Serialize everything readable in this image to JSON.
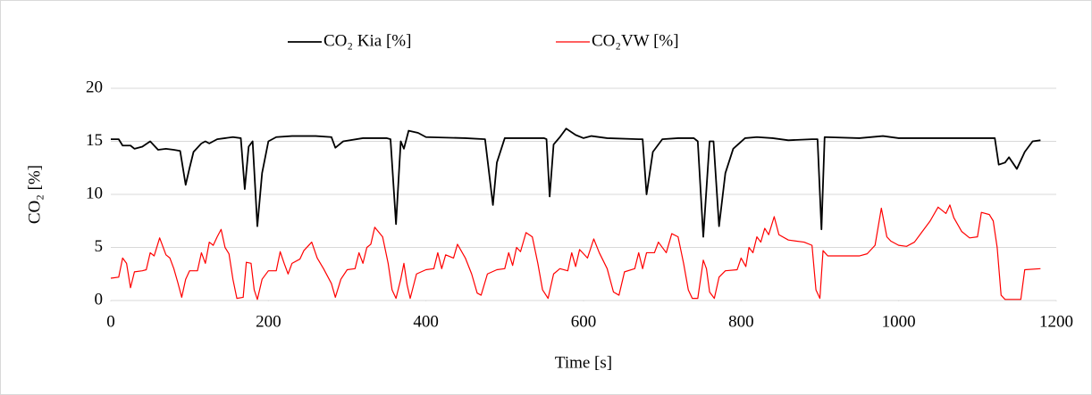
{
  "chart_data": {
    "type": "line",
    "xlabel": "Time [s]",
    "ylabel": "CO₂ [%]",
    "xlim": [
      0,
      1200
    ],
    "xticks": [
      0,
      200,
      400,
      600,
      800,
      1000,
      1200
    ],
    "ylim": [
      0,
      20
    ],
    "yticks": [
      0,
      5,
      10,
      15,
      20
    ],
    "grid": true,
    "legend": "top",
    "series": [
      {
        "name": "CO₂  Kia [%]",
        "color": "#000000",
        "x": [
          0,
          10,
          15,
          25,
          30,
          40,
          50,
          60,
          70,
          80,
          88,
          95,
          100,
          105,
          115,
          120,
          125,
          135,
          145,
          155,
          165,
          170,
          175,
          180,
          186,
          192,
          200,
          210,
          230,
          260,
          280,
          285,
          295,
          320,
          350,
          355,
          362,
          368,
          372,
          378,
          390,
          400,
          450,
          475,
          485,
          490,
          500,
          550,
          553,
          557,
          562,
          570,
          578,
          590,
          600,
          610,
          630,
          670,
          675,
          680,
          688,
          700,
          720,
          740,
          745,
          752,
          760,
          765,
          772,
          780,
          790,
          805,
          820,
          840,
          860,
          890,
          897,
          902,
          906,
          950,
          980,
          1000,
          1050,
          1100,
          1122,
          1127,
          1135,
          1140,
          1150,
          1160,
          1170,
          1180
        ],
        "values": [
          15.2,
          15.2,
          14.6,
          14.6,
          14.3,
          14.5,
          15.0,
          14.2,
          14.3,
          14.2,
          14.1,
          10.9,
          12.5,
          14.0,
          14.8,
          15.0,
          14.8,
          15.2,
          15.3,
          15.4,
          15.3,
          10.5,
          14.5,
          15.0,
          7.0,
          12,
          15.0,
          15.4,
          15.5,
          15.5,
          15.4,
          14.4,
          15.0,
          15.3,
          15.3,
          15.2,
          7.2,
          15.0,
          14.3,
          16.0,
          15.8,
          15.4,
          15.3,
          15.2,
          9.0,
          13,
          15.3,
          15.3,
          15.2,
          9.8,
          14.7,
          15.4,
          16.2,
          15.6,
          15.3,
          15.5,
          15.3,
          15.2,
          15.2,
          10.0,
          14,
          15.2,
          15.3,
          15.3,
          15.0,
          6.0,
          15.0,
          15.0,
          7.0,
          12,
          14.3,
          15.3,
          15.4,
          15.3,
          15.1,
          15.2,
          15.2,
          6.7,
          15.4,
          15.3,
          15.5,
          15.3,
          15.3,
          15.3,
          15.3,
          12.8,
          13.0,
          13.5,
          12.4,
          14.0,
          15.0,
          15.1
        ]
      },
      {
        "name": "CO₂VW [%]",
        "color": "#ff0000",
        "x": [
          0,
          10,
          15,
          20,
          25,
          30,
          40,
          45,
          50,
          55,
          62,
          70,
          75,
          80,
          85,
          90,
          95,
          100,
          110,
          115,
          120,
          125,
          130,
          135,
          140,
          145,
          150,
          155,
          160,
          168,
          172,
          178,
          182,
          186,
          192,
          200,
          210,
          215,
          220,
          225,
          230,
          240,
          245,
          255,
          262,
          270,
          280,
          285,
          292,
          300,
          310,
          315,
          320,
          325,
          330,
          335,
          345,
          352,
          357,
          362,
          368,
          372,
          376,
          380,
          388,
          400,
          410,
          415,
          420,
          425,
          435,
          440,
          450,
          458,
          465,
          470,
          478,
          490,
          500,
          505,
          510,
          515,
          520,
          527,
          535,
          542,
          548,
          555,
          562,
          570,
          580,
          585,
          590,
          595,
          605,
          613,
          620,
          630,
          638,
          645,
          652,
          665,
          670,
          675,
          680,
          690,
          695,
          705,
          712,
          720,
          727,
          733,
          738,
          745,
          752,
          756,
          760,
          766,
          772,
          780,
          795,
          800,
          806,
          810,
          815,
          820,
          825,
          830,
          835,
          842,
          848,
          860,
          880,
          890,
          895,
          900,
          904,
          910,
          950,
          960,
          970,
          978,
          985,
          990,
          1000,
          1010,
          1020,
          1030,
          1040,
          1050,
          1060,
          1065,
          1070,
          1080,
          1090,
          1100,
          1105,
          1115,
          1120,
          1125,
          1130,
          1135,
          1155,
          1160,
          1180
        ],
        "values": [
          2.1,
          2.2,
          4.0,
          3.5,
          1.2,
          2.7,
          2.8,
          2.9,
          4.5,
          4.2,
          5.9,
          4.3,
          4.0,
          3.0,
          1.7,
          0.3,
          2.0,
          2.8,
          2.8,
          4.5,
          3.5,
          5.5,
          5.2,
          6.0,
          6.7,
          5.0,
          4.4,
          2.0,
          0.2,
          0.3,
          3.6,
          3.5,
          1.0,
          0.1,
          2.0,
          2.8,
          2.8,
          4.6,
          3.5,
          2.5,
          3.5,
          3.9,
          4.7,
          5.5,
          4.0,
          3.0,
          1.6,
          0.3,
          2.0,
          2.9,
          3.0,
          4.5,
          3.5,
          5.0,
          5.3,
          6.9,
          6.0,
          3.5,
          1.0,
          0.2,
          2.0,
          3.5,
          1.5,
          0.2,
          2.5,
          2.9,
          3.0,
          4.5,
          3.0,
          4.3,
          4.0,
          5.3,
          4.0,
          2.5,
          0.7,
          0.5,
          2.5,
          2.9,
          3.0,
          4.5,
          3.3,
          5.0,
          4.6,
          6.4,
          6.0,
          3.5,
          1.0,
          0.2,
          2.5,
          3.0,
          2.8,
          4.5,
          3.2,
          4.8,
          4.0,
          5.8,
          4.5,
          3.0,
          0.8,
          0.5,
          2.7,
          3.0,
          4.5,
          3.0,
          4.5,
          4.5,
          5.5,
          4.5,
          6.3,
          6.0,
          3.5,
          1.0,
          0.2,
          0.2,
          3.8,
          3.0,
          0.8,
          0.2,
          2.2,
          2.8,
          2.9,
          4.0,
          3.2,
          5.0,
          4.5,
          6.0,
          5.5,
          6.8,
          6.2,
          7.9,
          6.2,
          5.7,
          5.5,
          5.2,
          1.0,
          0.2,
          4.7,
          4.2,
          4.2,
          4.4,
          5.2,
          8.7,
          6.0,
          5.6,
          5.2,
          5.1,
          5.5,
          6.5,
          7.5,
          8.8,
          8.2,
          9.0,
          7.8,
          6.5,
          5.9,
          6.0,
          8.3,
          8.1,
          7.5,
          5.0,
          0.5,
          0.1,
          0.1,
          2.9,
          3.0
        ]
      }
    ]
  }
}
